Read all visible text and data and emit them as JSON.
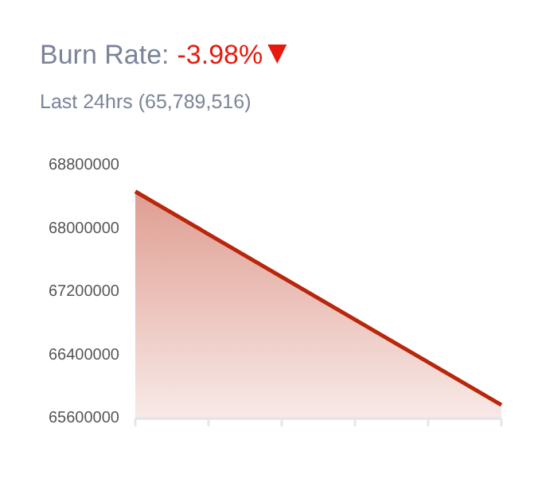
{
  "chart_data": {
    "type": "area",
    "title": "Burn Rate:",
    "subtitle": "Last 24hrs (65,789,516)",
    "annotations": [
      "-3.98%"
    ],
    "categories": [
      null,
      null
    ],
    "series": [
      {
        "color": "#b8260c",
        "values": [
          68450000,
          65750000
        ]
      }
    ],
    "ylim": [
      65600000,
      68800000
    ],
    "yticks": [
      65600000,
      66400000,
      67200000,
      68000000,
      68800000
    ],
    "grid": false
  }
}
